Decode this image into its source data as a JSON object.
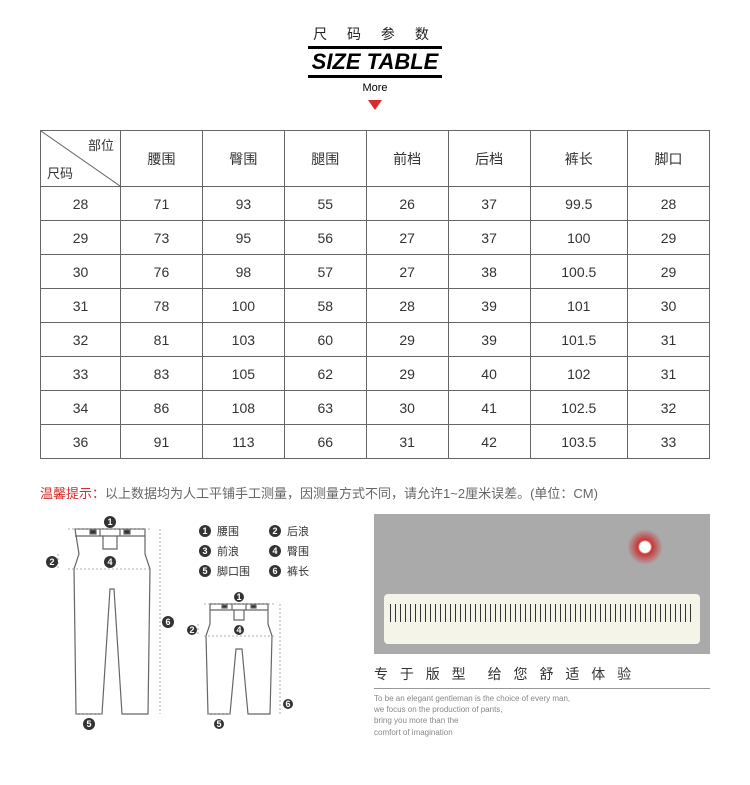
{
  "header": {
    "chinese": "尺 码 参 数",
    "english": "SIZE TABLE",
    "more": "More"
  },
  "table": {
    "corner_top": "部位",
    "corner_bottom": "尺码",
    "columns": [
      "腰围",
      "臀围",
      "腿围",
      "前档",
      "后档",
      "裤长",
      "脚口"
    ],
    "rows": [
      [
        "28",
        "71",
        "93",
        "55",
        "26",
        "37",
        "99.5",
        "28"
      ],
      [
        "29",
        "73",
        "95",
        "56",
        "27",
        "37",
        "100",
        "29"
      ],
      [
        "30",
        "76",
        "98",
        "57",
        "27",
        "38",
        "100.5",
        "29"
      ],
      [
        "31",
        "78",
        "100",
        "58",
        "28",
        "39",
        "101",
        "30"
      ],
      [
        "32",
        "81",
        "103",
        "60",
        "29",
        "39",
        "101.5",
        "31"
      ],
      [
        "33",
        "83",
        "105",
        "62",
        "29",
        "40",
        "102",
        "31"
      ],
      [
        "34",
        "86",
        "108",
        "63",
        "30",
        "41",
        "102.5",
        "32"
      ],
      [
        "36",
        "91",
        "113",
        "66",
        "31",
        "42",
        "103.5",
        "33"
      ]
    ]
  },
  "tip": {
    "label": "温馨提示：",
    "text": "以上数据均为人工平铺手工测量，因测量方式不同，请允许1~2厘米误差。(单位：CM)"
  },
  "legend": {
    "items": [
      {
        "num": "1",
        "label": "腰围"
      },
      {
        "num": "2",
        "label": "后浪"
      },
      {
        "num": "3",
        "label": "前浪"
      },
      {
        "num": "4",
        "label": "臀围"
      },
      {
        "num": "5",
        "label": "脚口围"
      },
      {
        "num": "6",
        "label": "裤长"
      }
    ]
  },
  "promo": {
    "title": "专 于 版 型　给 您 舒 适 体 验",
    "en1": "To be an elegant gentleman is the choice of every man,",
    "en2": "we focus on the production of pants,",
    "en3": "bring you more than the",
    "en4": "comfort of imagination"
  },
  "colors": {
    "accent": "#d92b2b",
    "border": "#666666",
    "text": "#333333",
    "muted": "#888888"
  }
}
